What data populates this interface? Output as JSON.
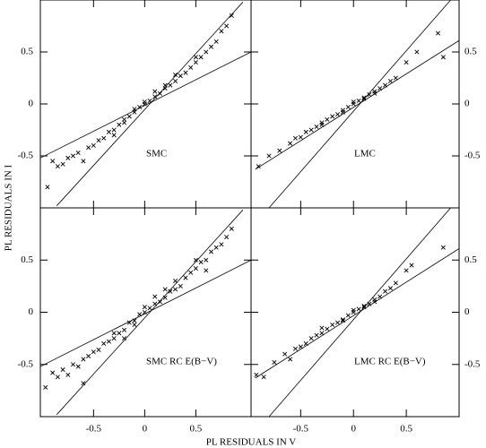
{
  "xlabel": "PL RESIDUALS IN V",
  "ylabel": "PL RESIDUALS IN I",
  "chart_data": [
    {
      "type": "scatter",
      "annotation": "SMC",
      "xlim": [
        -1.02,
        1.04
      ],
      "ylim": [
        -1,
        1
      ],
      "xticks": [
        -0.5,
        0,
        0.5
      ],
      "yticks": [
        -0.5,
        0,
        0.5
      ],
      "series": [
        {
          "type": "scatter",
          "color": "#000000",
          "x": [
            -0.95,
            -0.9,
            -0.85,
            -0.8,
            -0.75,
            -0.7,
            -0.65,
            -0.6,
            -0.55,
            -0.5,
            -0.45,
            -0.4,
            -0.35,
            -0.3,
            -0.25,
            -0.2,
            -0.15,
            -0.1,
            -0.05,
            0,
            0.05,
            0.1,
            0.15,
            0.2,
            0.25,
            0.3,
            0.35,
            0.4,
            0.45,
            0.5,
            0.55,
            0.6,
            0.65,
            0.7,
            0.75,
            0.8,
            0.85,
            -0.3,
            -0.1,
            0.1,
            0.3,
            0.5,
            -0.2,
            0.0,
            0.2
          ],
          "values": [
            -0.8,
            -0.55,
            -0.6,
            -0.58,
            -0.52,
            -0.5,
            -0.47,
            -0.55,
            -0.42,
            -0.4,
            -0.35,
            -0.33,
            -0.27,
            -0.25,
            -0.2,
            -0.15,
            -0.12,
            -0.08,
            -0.03,
            0,
            0.03,
            0.07,
            0.1,
            0.15,
            0.18,
            0.22,
            0.27,
            0.3,
            0.35,
            0.4,
            0.45,
            0.5,
            0.55,
            0.6,
            0.7,
            0.75,
            0.85,
            -0.3,
            -0.05,
            0.12,
            0.28,
            0.45,
            -0.18,
            0.02,
            0.18
          ]
        },
        {
          "type": "line",
          "color": "#000000",
          "x": [
            -0.86,
            0.96
          ],
          "values": [
            -0.98,
            0.98
          ]
        },
        {
          "type": "line",
          "color": "#000000",
          "x": [
            -1.02,
            1.04
          ],
          "values": [
            -0.52,
            0.5
          ]
        }
      ]
    },
    {
      "type": "scatter",
      "annotation": "LMC",
      "xlim": [
        -0.97,
        1.0
      ],
      "ylim": [
        -1,
        1
      ],
      "xticks": [
        -0.5,
        0,
        0.5
      ],
      "yticks": [
        -0.5,
        0,
        0.5
      ],
      "series": [
        {
          "type": "scatter",
          "color": "#000000",
          "x": [
            -0.9,
            -0.8,
            -0.7,
            -0.6,
            -0.55,
            -0.5,
            -0.45,
            -0.4,
            -0.35,
            -0.3,
            -0.25,
            -0.2,
            -0.15,
            -0.1,
            -0.05,
            0,
            0.05,
            0.1,
            0.15,
            0.2,
            0.25,
            0.3,
            0.35,
            0.4,
            0.5,
            0.6,
            0.8,
            0.85,
            -0.3,
            0,
            0.2,
            -0.1,
            0.1
          ],
          "values": [
            -0.6,
            -0.5,
            -0.45,
            -0.38,
            -0.33,
            -0.32,
            -0.27,
            -0.25,
            -0.22,
            -0.18,
            -0.15,
            -0.12,
            -0.1,
            -0.06,
            -0.03,
            0,
            0.03,
            0.06,
            0.09,
            0.12,
            0.15,
            0.18,
            0.22,
            0.25,
            0.4,
            0.5,
            0.68,
            0.45,
            -0.2,
            0.02,
            0.1,
            -0.08,
            0.05
          ]
        },
        {
          "type": "line",
          "color": "#000000",
          "x": [
            -0.8,
            0.92
          ],
          "values": [
            -1,
            1
          ]
        },
        {
          "type": "line",
          "color": "#000000",
          "x": [
            -0.93,
            1.0
          ],
          "values": [
            -0.63,
            0.61
          ]
        }
      ]
    },
    {
      "type": "scatter",
      "annotation": "SMC RC E(B−V)",
      "xlim": [
        -1.02,
        1.04
      ],
      "ylim": [
        -1,
        1
      ],
      "xticks": [
        -0.5,
        0,
        0.5
      ],
      "yticks": [
        -0.5,
        0,
        0.5
      ],
      "series": [
        {
          "type": "scatter",
          "color": "#000000",
          "x": [
            -0.97,
            -0.9,
            -0.85,
            -0.8,
            -0.75,
            -0.7,
            -0.65,
            -0.6,
            -0.55,
            -0.5,
            -0.45,
            -0.4,
            -0.35,
            -0.3,
            -0.25,
            -0.2,
            -0.15,
            -0.1,
            -0.05,
            0,
            0.05,
            0.1,
            0.15,
            0.2,
            0.25,
            0.3,
            0.35,
            0.4,
            0.45,
            0.5,
            0.55,
            0.6,
            0.65,
            0.7,
            0.75,
            0.8,
            0.85,
            -0.3,
            -0.1,
            0.1,
            0.3,
            0.5,
            -0.2,
            0.0,
            0.2,
            -0.6,
            0.6
          ],
          "values": [
            -0.72,
            -0.58,
            -0.62,
            -0.55,
            -0.6,
            -0.5,
            -0.52,
            -0.45,
            -0.42,
            -0.38,
            -0.36,
            -0.3,
            -0.28,
            -0.25,
            -0.2,
            -0.17,
            -0.1,
            -0.08,
            -0.02,
            0,
            0.04,
            0.08,
            0.1,
            0.14,
            0.2,
            0.22,
            0.25,
            0.33,
            0.38,
            0.42,
            0.48,
            0.5,
            0.58,
            0.62,
            0.65,
            0.72,
            0.8,
            -0.2,
            -0.12,
            0.15,
            0.3,
            0.5,
            -0.25,
            0.05,
            0.22,
            -0.68,
            0.4
          ]
        },
        {
          "type": "line",
          "color": "#000000",
          "x": [
            -0.86,
            0.96
          ],
          "values": [
            -0.98,
            0.98
          ]
        },
        {
          "type": "line",
          "color": "#000000",
          "x": [
            -1.02,
            1.04
          ],
          "values": [
            -0.52,
            0.5
          ]
        }
      ]
    },
    {
      "type": "scatter",
      "annotation": "LMC RC E(B−V)",
      "xlim": [
        -0.97,
        1.0
      ],
      "ylim": [
        -1,
        1
      ],
      "xticks": [
        -0.5,
        0,
        0.5
      ],
      "yticks": [
        -0.5,
        0,
        0.5
      ],
      "series": [
        {
          "type": "scatter",
          "color": "#000000",
          "x": [
            -0.92,
            -0.85,
            -0.75,
            -0.65,
            -0.55,
            -0.5,
            -0.45,
            -0.4,
            -0.35,
            -0.3,
            -0.25,
            -0.2,
            -0.15,
            -0.1,
            -0.05,
            0,
            0.05,
            0.1,
            0.15,
            0.2,
            0.25,
            0.3,
            0.35,
            0.4,
            0.5,
            0.55,
            0.85,
            -0.3,
            0,
            0.2,
            -0.1,
            0.1,
            -0.6
          ],
          "values": [
            -0.6,
            -0.62,
            -0.48,
            -0.4,
            -0.35,
            -0.33,
            -0.3,
            -0.25,
            -0.22,
            -0.2,
            -0.16,
            -0.12,
            -0.1,
            -0.07,
            -0.03,
            0,
            0.03,
            0.05,
            0.08,
            0.12,
            0.15,
            0.2,
            0.23,
            0.28,
            0.4,
            0.45,
            0.62,
            -0.15,
            0.02,
            0.1,
            -0.08,
            0.06,
            -0.45
          ]
        },
        {
          "type": "line",
          "color": "#000000",
          "x": [
            -0.8,
            0.92
          ],
          "values": [
            -1,
            1
          ]
        },
        {
          "type": "line",
          "color": "#000000",
          "x": [
            -0.93,
            1.0
          ],
          "values": [
            -0.63,
            0.61
          ]
        }
      ]
    }
  ]
}
